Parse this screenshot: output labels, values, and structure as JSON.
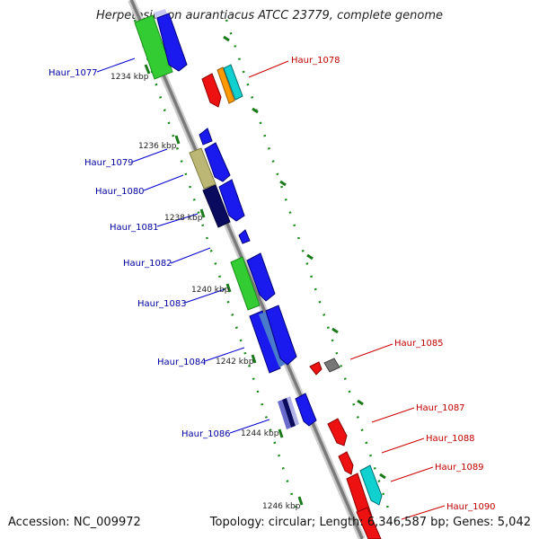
{
  "title": "Herpetosiphon aurantiacus ATCC 23779, complete genome",
  "footer": {
    "accession_label": "Accession:",
    "accession": "NC_009972",
    "topology_label": "Topology:",
    "topology": "circular",
    "length_label": "Length:",
    "length": "6,346,587 bp",
    "genes_label": "Genes:",
    "genes": "5,042"
  },
  "colors": {
    "backbone": "#888888",
    "ticks": "#1a7a1a",
    "left_label": "#0000a0",
    "right_label": "#c00000"
  },
  "ticks": [
    {
      "label": "1234 kbp"
    },
    {
      "label": "1236 kbp"
    },
    {
      "label": "1238 kbp"
    },
    {
      "label": "1240 kbp"
    },
    {
      "label": "1242 kbp"
    },
    {
      "label": "1244 kbp"
    },
    {
      "label": "1246 kbp"
    }
  ],
  "left_genes": [
    {
      "label": "Haur_1077"
    },
    {
      "label": "Haur_1079"
    },
    {
      "label": "Haur_1080"
    },
    {
      "label": "Haur_1081"
    },
    {
      "label": "Haur_1082"
    },
    {
      "label": "Haur_1083"
    },
    {
      "label": "Haur_1084"
    },
    {
      "label": "Haur_1086"
    }
  ],
  "right_genes": [
    {
      "label": "Haur_1078"
    },
    {
      "label": "Haur_1085"
    },
    {
      "label": "Haur_1087"
    },
    {
      "label": "Haur_1088"
    },
    {
      "label": "Haur_1089"
    },
    {
      "label": "Haur_1090"
    }
  ]
}
